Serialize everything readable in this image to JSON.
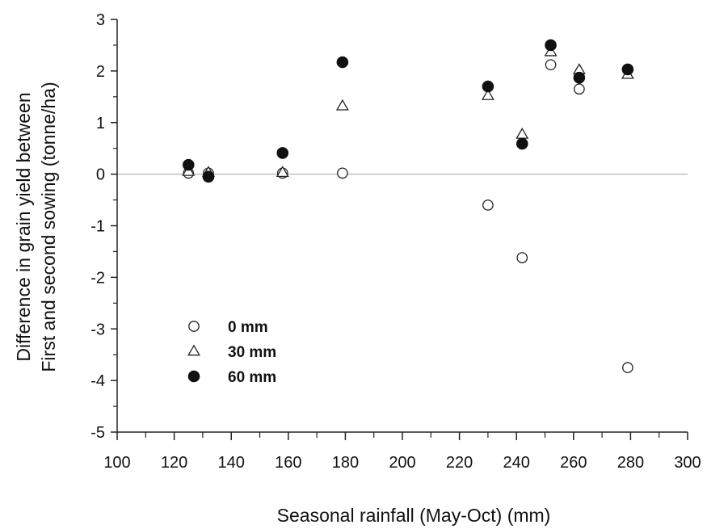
{
  "chart_data": {
    "type": "scatter",
    "title": "",
    "xlabel": "Seasonal rainfall (May-Oct) (mm)",
    "ylabel_lines": [
      "Difference in grain yield between",
      "First and second sowing (tonne/ha)"
    ],
    "xlim": [
      100,
      300
    ],
    "ylim": [
      -5,
      3
    ],
    "x_ticks": [
      "100",
      "120",
      "140",
      "160",
      "180",
      "200",
      "220",
      "240",
      "260",
      "280",
      "300"
    ],
    "y_ticks": [
      "3",
      "2",
      "1",
      "0",
      "-1",
      "-2",
      "-3",
      "-4",
      "-5"
    ],
    "grid": false,
    "zero_line": true,
    "legend_position": "lower-left",
    "series": [
      {
        "name": "0 mm",
        "marker": "open-circle",
        "points": [
          [
            125,
            0.02
          ],
          [
            132,
            0.02
          ],
          [
            158,
            0.02
          ],
          [
            179,
            0.02
          ],
          [
            230,
            -0.6
          ],
          [
            242,
            -1.62
          ],
          [
            252,
            2.12
          ],
          [
            262,
            1.65
          ],
          [
            279,
            -3.75
          ]
        ]
      },
      {
        "name": "30 mm",
        "marker": "open-triangle",
        "points": [
          [
            125,
            0.05
          ],
          [
            132,
            0.03
          ],
          [
            158,
            0.03
          ],
          [
            179,
            1.32
          ],
          [
            230,
            1.52
          ],
          [
            242,
            0.77
          ],
          [
            252,
            2.37
          ],
          [
            262,
            2.02
          ],
          [
            279,
            1.93
          ]
        ]
      },
      {
        "name": "60 mm",
        "marker": "filled-circle",
        "points": [
          [
            125,
            0.18
          ],
          [
            132,
            -0.05
          ],
          [
            158,
            0.41
          ],
          [
            179,
            2.17
          ],
          [
            230,
            1.7
          ],
          [
            242,
            0.59
          ],
          [
            252,
            2.5
          ],
          [
            262,
            1.87
          ],
          [
            279,
            2.03
          ]
        ]
      }
    ]
  }
}
